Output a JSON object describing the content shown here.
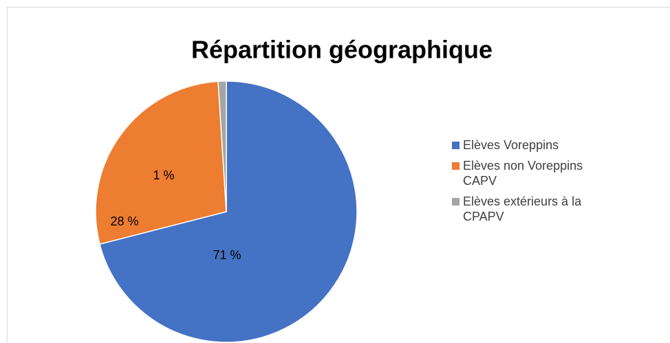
{
  "chart_data": {
    "type": "pie",
    "title": "Répartition géographique",
    "categories": [
      "Elèves Voreppins",
      "Elèves non Voreppins CAPV",
      "Elèves extérieurs à la CPAPV"
    ],
    "values": [
      71,
      28,
      1
    ],
    "value_labels": [
      "71 %",
      "28 %",
      "1 %"
    ],
    "colors": [
      "#4472c4",
      "#ed7d31",
      "#a5a5a5"
    ],
    "legend": "right"
  }
}
